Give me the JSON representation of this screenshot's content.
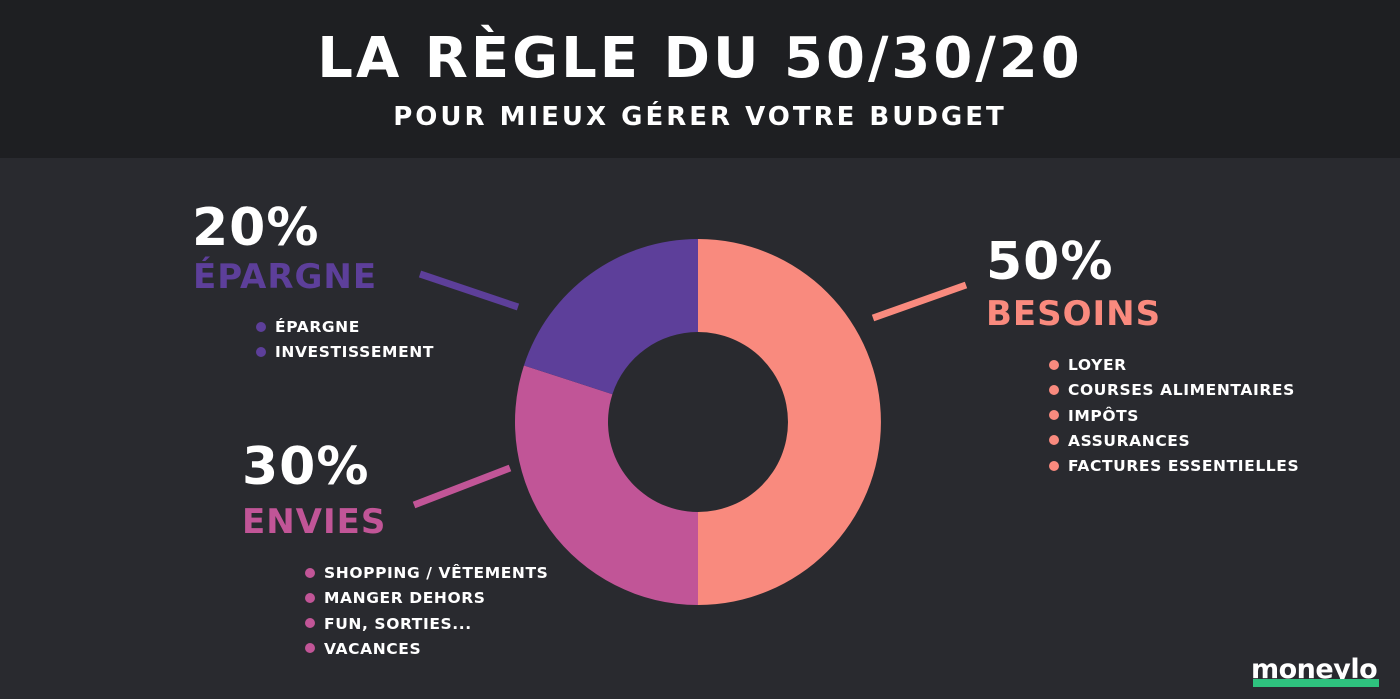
{
  "header": {
    "title": "LA RÈGLE DU 50/30/20",
    "subtitle": "POUR MIEUX GÉRER VOTRE BUDGET"
  },
  "brand": {
    "logo": "moneylo"
  },
  "colors": {
    "background": "#292a2f",
    "header_bg": "#1e1f22",
    "besoins": "#f98a7e",
    "envies": "#c15597",
    "epargne": "#5d3f9a",
    "logo_accent": "#2ec27e"
  },
  "chart_data": {
    "type": "pie",
    "variant": "donut",
    "slices": [
      {
        "name": "BESOINS",
        "value": 50,
        "label": "50%",
        "color": "#f98a7e"
      },
      {
        "name": "ENVIES",
        "value": 30,
        "label": "30%",
        "color": "#c15597"
      },
      {
        "name": "ÉPARGNE",
        "value": 20,
        "label": "20%",
        "color": "#5d3f9a"
      }
    ]
  },
  "categories": {
    "besoins": {
      "percent": "50%",
      "name": "BESOINS",
      "items": [
        "LOYER",
        "COURSES ALIMENTAIRES",
        "IMPÔTS",
        "ASSURANCES",
        "FACTURES ESSENTIELLES"
      ]
    },
    "envies": {
      "percent": "30%",
      "name": "ENVIES",
      "items": [
        "SHOPPING / VÊTEMENTS",
        "MANGER DEHORS",
        "FUN, SORTIES...",
        "VACANCES"
      ]
    },
    "epargne": {
      "percent": "20%",
      "name": "ÉPARGNE",
      "items": [
        "ÉPARGNE",
        "INVESTISSEMENT"
      ]
    }
  }
}
